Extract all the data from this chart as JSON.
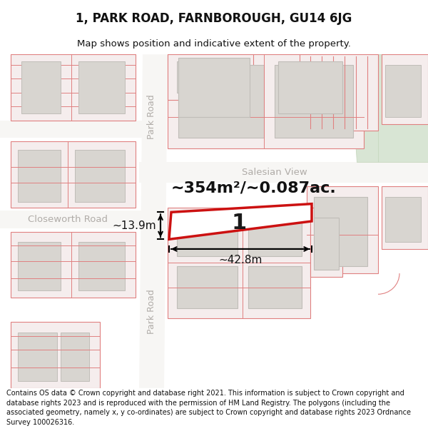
{
  "title": "1, PARK ROAD, FARNBOROUGH, GU14 6JG",
  "subtitle": "Map shows position and indicative extent of the property.",
  "footer": "Contains OS data © Crown copyright and database right 2021. This information is subject to Crown copyright and database rights 2023 and is reproduced with the permission of HM Land Registry. The polygons (including the associated geometry, namely x, y co-ordinates) are subject to Crown copyright and database rights 2023 Ordnance Survey 100026316.",
  "area_text": "~354m²/~0.087ac.",
  "label_1": "1",
  "dim_width": "~42.8m",
  "dim_height": "~13.9m",
  "map_bg": "#edeae5",
  "road_white": "#f7f6f4",
  "bld_fill": "#d8d5d0",
  "bld_outline": "#c0bdb8",
  "red_outline": "#e08080",
  "red_fill": "#f5eded",
  "green_fill": "#d8e5d4",
  "prop_red": "#cc1111",
  "street_color": "#b0aca8",
  "dim_color": "#111111",
  "text_dark": "#111111"
}
